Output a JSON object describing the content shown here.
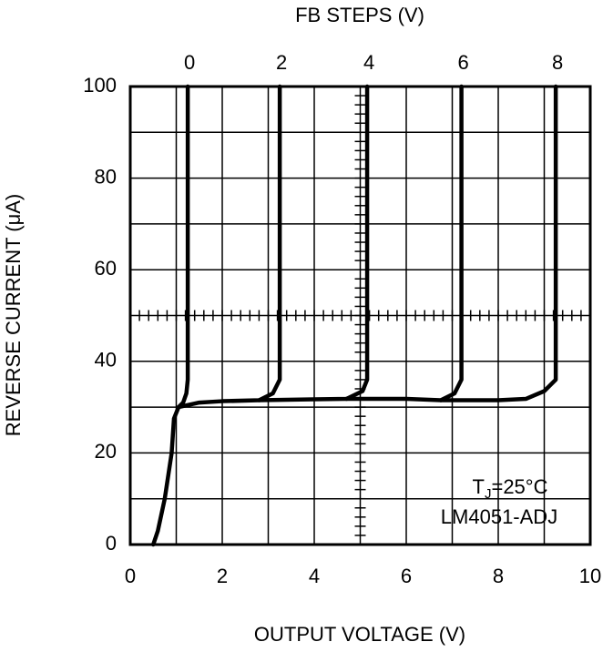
{
  "chart_data": {
    "type": "line",
    "title": "FB STEPS (V)",
    "x_label": "OUTPUT VOLTAGE (V)",
    "y_label": "REVERSE CURRENT (μA)",
    "xlim": [
      0,
      10
    ],
    "ylim": [
      0,
      100
    ],
    "xticks": [
      0,
      2,
      4,
      6,
      8,
      10
    ],
    "yticks": [
      0,
      20,
      40,
      60,
      80,
      100
    ],
    "grid": true,
    "color": "#000000",
    "series": [
      {
        "name": "0",
        "x": [
          0.5,
          0.6,
          0.75,
          0.9,
          0.95,
          1.05,
          1.15,
          1.22,
          1.25,
          1.25
        ],
        "values": [
          0,
          3,
          10,
          20,
          27.5,
          30,
          31,
          33,
          36,
          100
        ]
      },
      {
        "name": "2",
        "x": [
          1.05,
          1.5,
          2,
          2.8,
          3.1,
          3.25,
          3.25
        ],
        "values": [
          30,
          31,
          31.3,
          31.5,
          33,
          36,
          100
        ]
      },
      {
        "name": "4",
        "x": [
          2.8,
          4,
          4.7,
          5.05,
          5.15,
          5.15
        ],
        "values": [
          31.5,
          31.7,
          31.8,
          33.5,
          36,
          100
        ]
      },
      {
        "name": "6",
        "x": [
          4.7,
          6,
          6.75,
          7.05,
          7.2,
          7.2
        ],
        "values": [
          31.8,
          31.8,
          31.5,
          33,
          36,
          100
        ]
      },
      {
        "name": "8",
        "x": [
          6.75,
          8,
          8.6,
          9.0,
          9.25,
          9.25
        ],
        "values": [
          31.5,
          31.5,
          31.8,
          33.5,
          36,
          100
        ]
      }
    ],
    "annotations": [
      {
        "text": "T",
        "subscript": "J",
        "suffix": "=25°C"
      },
      {
        "text": "LM4051-ADJ"
      }
    ]
  }
}
